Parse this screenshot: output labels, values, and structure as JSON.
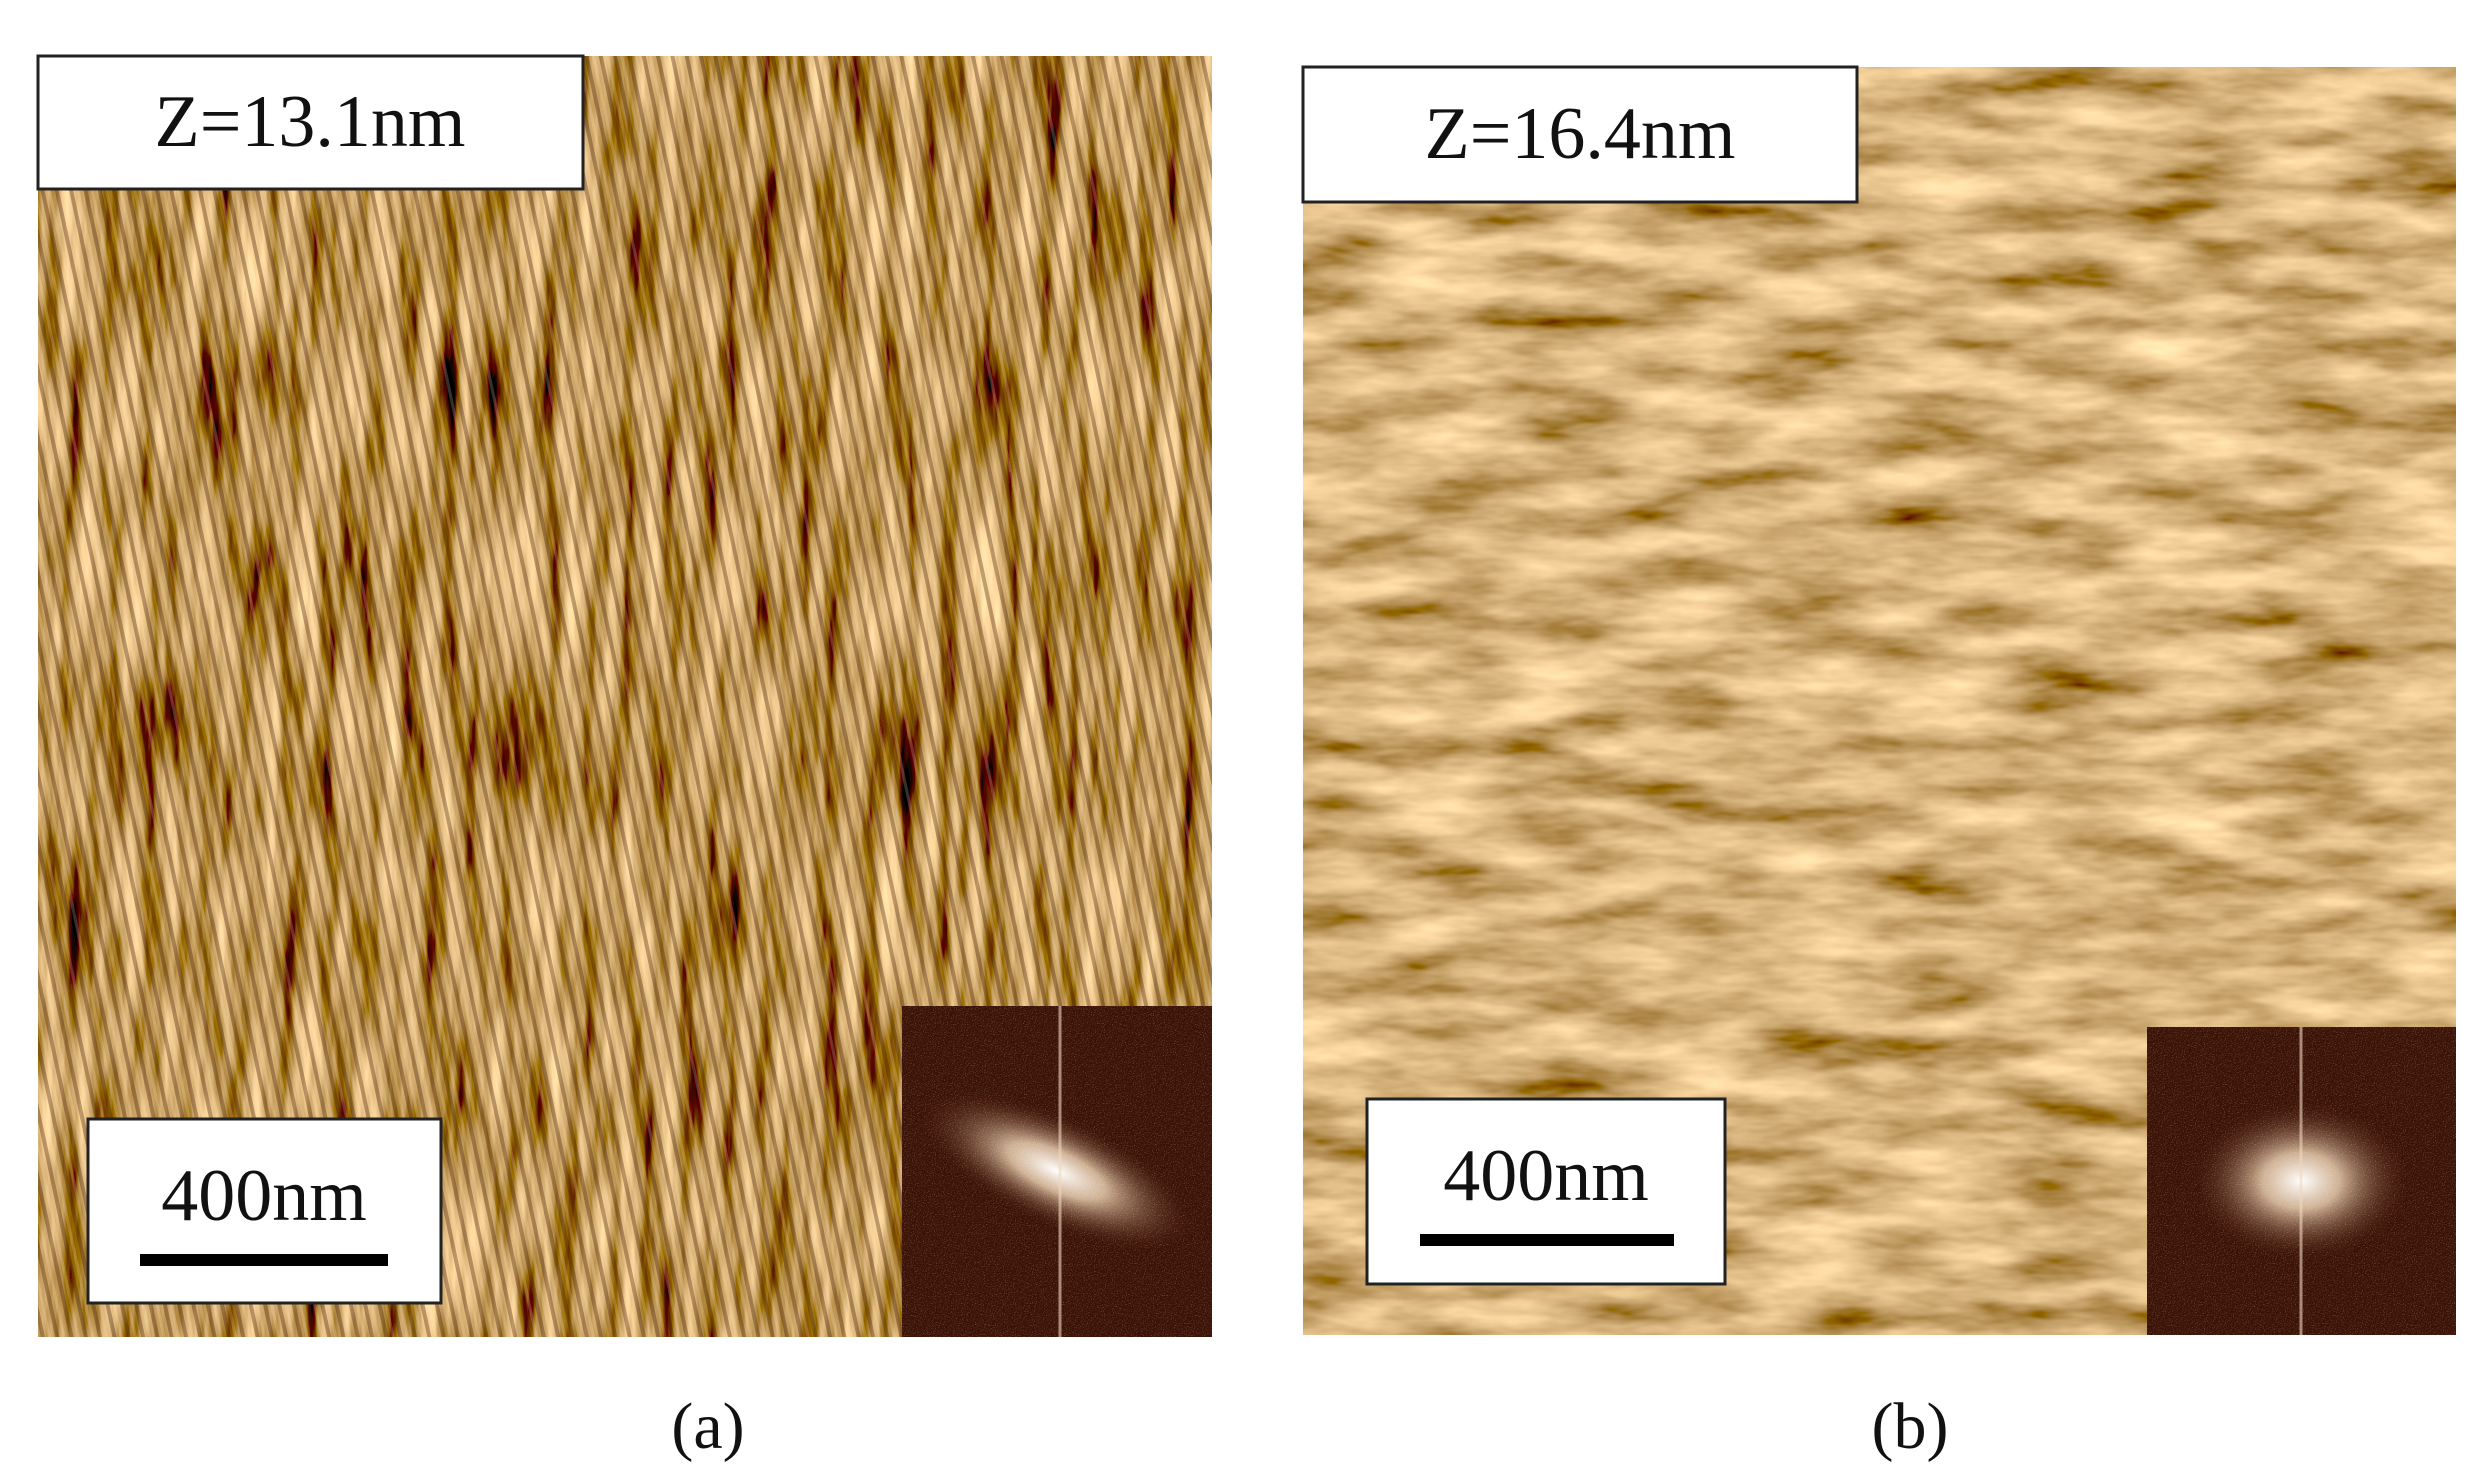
{
  "panels": [
    {
      "z_label": "Z=13.1nm",
      "scale_label": "400nm",
      "caption": "(a)"
    },
    {
      "z_label": "Z=16.4nm",
      "scale_label": "400nm",
      "caption": "(b)"
    }
  ]
}
